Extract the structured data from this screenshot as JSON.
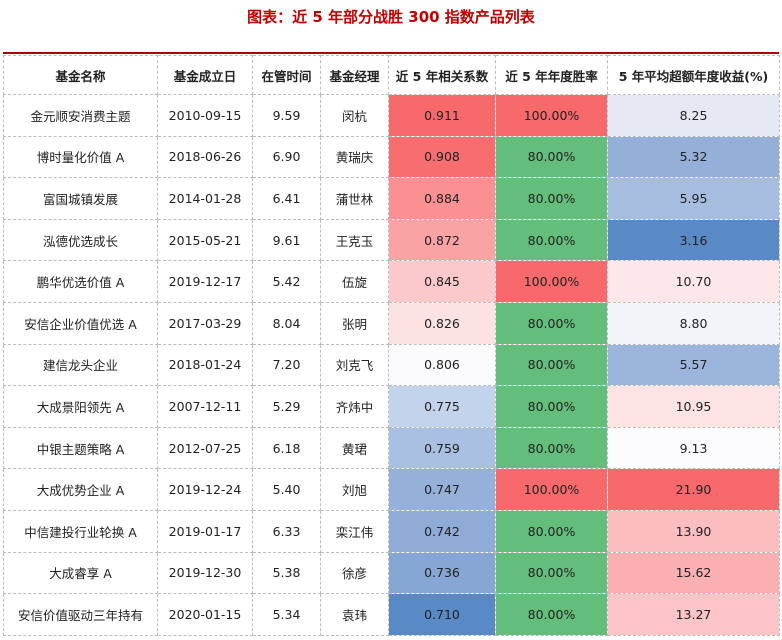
{
  "title": "图表：近 5 年部分战胜 300 指数产品列表",
  "columns": [
    "基金名称",
    "基金成立日",
    "在管时间",
    "基金经理",
    "近 5 年相关系数",
    "近 5 年年度胜率",
    "5 年平均超额年度收益(%)"
  ],
  "rows": [
    {
      "name": "金元顺安消费主题",
      "date": "2010-09-15",
      "tenure": "9.59",
      "manager": "闵杭",
      "corr": "0.911",
      "winrate": "100.00%",
      "excess": "8.25",
      "corr_color": "#f8696b",
      "win_color": "#f8696b",
      "excess_color": "#e4e9f3"
    },
    {
      "name": "博时量化价值 A",
      "date": "2018-06-26",
      "tenure": "6.90",
      "manager": "黄瑞庆",
      "corr": "0.908",
      "winrate": "80.00%",
      "excess": "5.32",
      "corr_color": "#f86e70",
      "win_color": "#63be7b",
      "excess_color": "#94b0d9"
    },
    {
      "name": "富国城镇发展",
      "date": "2014-01-28",
      "tenure": "6.41",
      "manager": "蒲世林",
      "corr": "0.884",
      "winrate": "80.00%",
      "excess": "5.95",
      "corr_color": "#f99193",
      "win_color": "#63be7b",
      "excess_color": "#a6bde0"
    },
    {
      "name": "泓德优选成长",
      "date": "2015-05-21",
      "tenure": "9.61",
      "manager": "王克玉",
      "corr": "0.872",
      "winrate": "80.00%",
      "excess": "3.16",
      "corr_color": "#faa3a5",
      "win_color": "#63be7b",
      "excess_color": "#5a8ac6"
    },
    {
      "name": "鹏华优选价值 A",
      "date": "2019-12-17",
      "tenure": "5.42",
      "manager": "伍旋",
      "corr": "0.845",
      "winrate": "100.00%",
      "excess": "10.70",
      "corr_color": "#fbc9cb",
      "win_color": "#f8696b",
      "excess_color": "#fde7e8"
    },
    {
      "name": "安信企业价值优选 A",
      "date": "2017-03-29",
      "tenure": "8.04",
      "manager": "张明",
      "corr": "0.826",
      "winrate": "80.00%",
      "excess": "8.80",
      "corr_color": "#fde2e4",
      "win_color": "#63be7b",
      "excess_color": "#f2f4f9"
    },
    {
      "name": "建信龙头企业",
      "date": "2018-01-24",
      "tenure": "7.20",
      "manager": "刘克飞",
      "corr": "0.806",
      "winrate": "80.00%",
      "excess": "5.57",
      "corr_color": "#fbfbfd",
      "win_color": "#63be7b",
      "excess_color": "#9bb5dc"
    },
    {
      "name": "大成景阳领先 A",
      "date": "2007-12-11",
      "tenure": "5.29",
      "manager": "齐炜中",
      "corr": "0.775",
      "winrate": "80.00%",
      "excess": "10.95",
      "corr_color": "#c4d3ec",
      "win_color": "#63be7b",
      "excess_color": "#fde3e4"
    },
    {
      "name": "中银主题策略 A",
      "date": "2012-07-25",
      "tenure": "6.18",
      "manager": "黄珺",
      "corr": "0.759",
      "winrate": "80.00%",
      "excess": "9.13",
      "corr_color": "#a9c0e2",
      "win_color": "#63be7b",
      "excess_color": "#fcfcff"
    },
    {
      "name": "大成优势企业 A",
      "date": "2019-12-24",
      "tenure": "5.40",
      "manager": "刘旭",
      "corr": "0.747",
      "winrate": "100.00%",
      "excess": "21.90",
      "corr_color": "#95b1d9",
      "win_color": "#f8696b",
      "excess_color": "#f8696b"
    },
    {
      "name": "中信建投行业轮换 A",
      "date": "2019-01-17",
      "tenure": "6.33",
      "manager": "栾江伟",
      "corr": "0.742",
      "winrate": "80.00%",
      "excess": "13.90",
      "corr_color": "#8eacd6",
      "win_color": "#63be7b",
      "excess_color": "#fbbdbf"
    },
    {
      "name": "大成睿享 A",
      "date": "2019-12-30",
      "tenure": "5.38",
      "manager": "徐彦",
      "corr": "0.736",
      "winrate": "80.00%",
      "excess": "15.62",
      "corr_color": "#86a6d3",
      "win_color": "#63be7b",
      "excess_color": "#fab0b2"
    },
    {
      "name": "安信价值驱动三年持有",
      "date": "2020-01-15",
      "tenure": "5.34",
      "manager": "袁玮",
      "corr": "0.710",
      "winrate": "80.00%",
      "excess": "13.27",
      "corr_color": "#5a8ac6",
      "win_color": "#63be7b",
      "excess_color": "#fbc4c6"
    }
  ]
}
